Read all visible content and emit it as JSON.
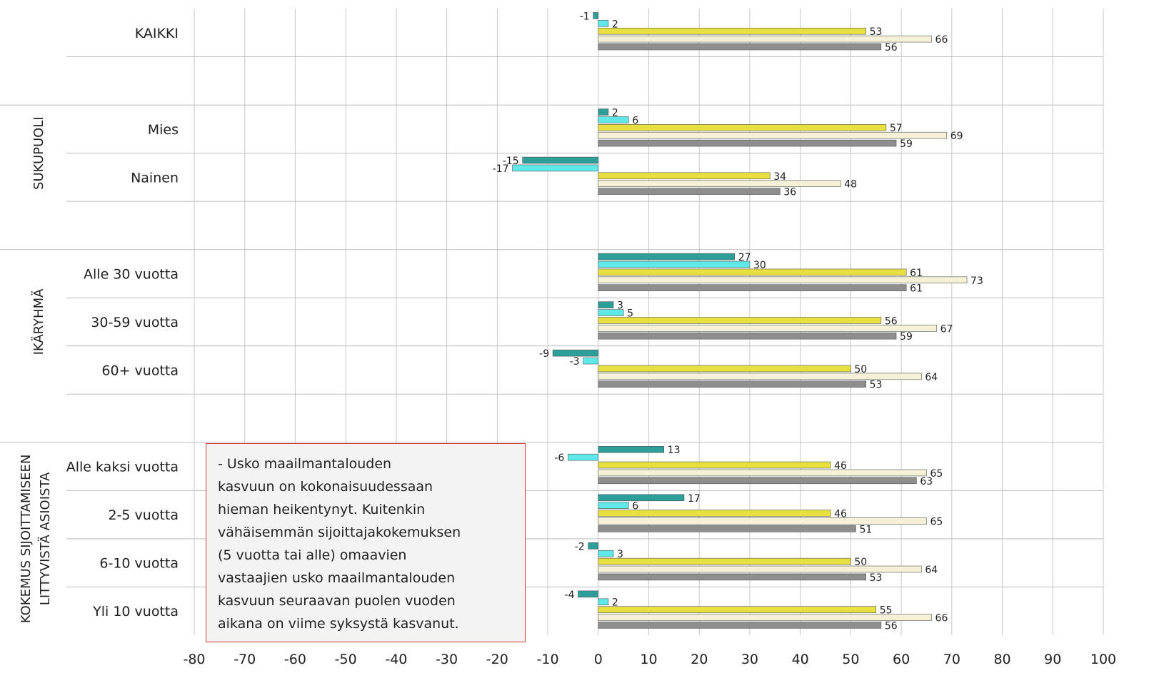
{
  "chart_data": {
    "type": "bar",
    "orientation": "horizontal",
    "xlim": [
      -80,
      100
    ],
    "x_ticks": [
      "-80",
      "-70",
      "-60",
      "-50",
      "-40",
      "-30",
      "-20",
      "-10",
      "0",
      "10",
      "20",
      "30",
      "40",
      "50",
      "60",
      "70",
      "80",
      "90",
      "100"
    ],
    "grid": true,
    "series_colors": [
      "#2e9e98",
      "#5ee8e8",
      "#e8e040",
      "#f4f1d6",
      "#8e8e8e"
    ],
    "groups": [
      {
        "label": "",
        "categories": [
          {
            "label": "KAIKKI",
            "values": [
              -1,
              2,
              53,
              66,
              56
            ]
          }
        ]
      },
      {
        "label": "SUKUPUOLI",
        "categories": [
          {
            "label": "Mies",
            "values": [
              2,
              6,
              57,
              69,
              59
            ]
          },
          {
            "label": "Nainen",
            "values": [
              -15,
              -17,
              34,
              48,
              36
            ]
          }
        ]
      },
      {
        "label": "IKÄRYHMÄ",
        "categories": [
          {
            "label": "Alle 30 vuotta",
            "values": [
              27,
              30,
              61,
              73,
              61
            ]
          },
          {
            "label": "30-59 vuotta",
            "values": [
              3,
              5,
              56,
              67,
              59
            ]
          },
          {
            "label": "60+ vuotta",
            "values": [
              -9,
              -3,
              50,
              64,
              53
            ]
          }
        ]
      },
      {
        "label": "KOKEMUS SIJOITTAMISEEN LITTYVISTÄ ASIOISTA",
        "label_lines": [
          "KOKEMUS SIJOITTAMISEEN",
          "LITTYVISTÄ ASIOISTA"
        ],
        "categories": [
          {
            "label": "Alle kaksi vuotta",
            "values": [
              13,
              -6,
              46,
              65,
              63
            ]
          },
          {
            "label": "2-5 vuotta",
            "values": [
              17,
              6,
              46,
              65,
              51
            ]
          },
          {
            "label": "6-10 vuotta",
            "values": [
              -2,
              3,
              50,
              64,
              53
            ]
          },
          {
            "label": "Yli 10 vuotta",
            "values": [
              -4,
              2,
              55,
              66,
              56
            ]
          }
        ]
      }
    ]
  },
  "annotation": {
    "text": "- Usko maailmantalouden\n  kasvuun on kokonaisuudessaan\n  hieman heikentynyt. Kuitenkin\n  vähäisemmän sijoittajakokemuksen\n  (5 vuotta tai alle) omaavien\n  vastaajien usko maailmantalouden\n  kasvuun seuraavan puolen vuoden\n  aikana on viime syksystä kasvanut."
  }
}
